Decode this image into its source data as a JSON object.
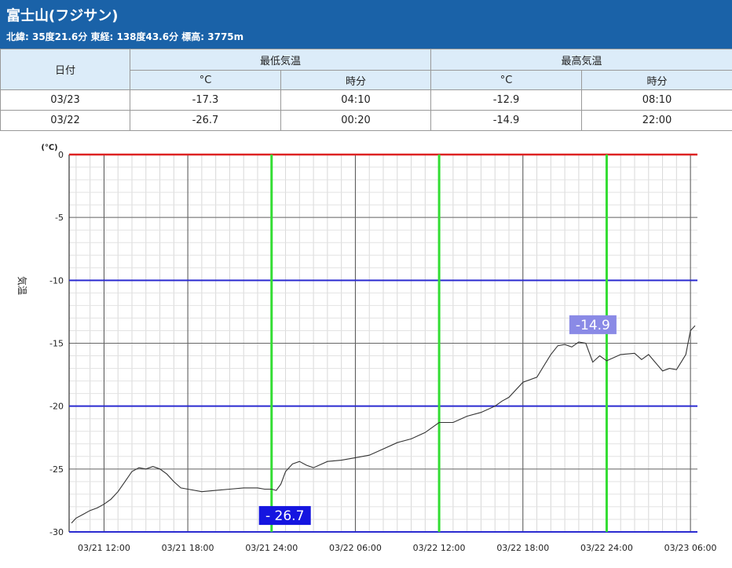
{
  "header": {
    "title": "富士山(フジサン)",
    "subtitle": "北緯: 35度21.6分 東経: 138度43.6分 標高: 3775m"
  },
  "table": {
    "date_header": "日付",
    "min_header": "最低気温",
    "max_header": "最高気温",
    "unit_header": "°C",
    "time_header": "時分",
    "rows": [
      {
        "date": "03/23",
        "min_c": "-17.3",
        "min_time": "04:10",
        "max_c": "-12.9",
        "max_time": "08:10"
      },
      {
        "date": "03/22",
        "min_c": "-26.7",
        "min_time": "00:20",
        "max_c": "-14.9",
        "max_time": "22:00"
      }
    ]
  },
  "chart_data": {
    "type": "line",
    "ylabel": "気温",
    "yunit": "(℃)",
    "ylim": [
      -30,
      0
    ],
    "yticks": [
      "0",
      "-5",
      "-10",
      "-15",
      "-20",
      "-25",
      "-30"
    ],
    "xlim": [
      "03/21 09:30",
      "03/23 06:30"
    ],
    "xticks": [
      "03/21 12:00",
      "03/21 18:00",
      "03/21 24:00",
      "03/22 06:00",
      "03/22 12:00",
      "03/22 18:00",
      "03/22 24:00",
      "03/23 06:00"
    ],
    "grid": true,
    "colors": {
      "line": "#333333",
      "zero_line": "#dd2222",
      "blue_lines": "#2b2bd0",
      "day_marker": "#33dd33",
      "min_label_bg": "#1515e0",
      "max_label_bg": "#8a8ae6"
    },
    "annotations": [
      {
        "text": "- 26.7",
        "x": "03/22 00:20",
        "y": -26.7
      },
      {
        "text": "-14.9",
        "x": "03/22 22:00",
        "y": -14.9
      }
    ],
    "series": [
      {
        "x": [
          "03/21 09:40",
          "03/21 10:00",
          "03/21 10:30",
          "03/21 11:00",
          "03/21 11:30",
          "03/21 12:00",
          "03/21 12:30",
          "03/21 13:00",
          "03/21 13:30",
          "03/21 14:00",
          "03/21 14:30",
          "03/21 15:00",
          "03/21 15:30",
          "03/21 16:00",
          "03/21 16:30",
          "03/21 17:00",
          "03/21 17:30",
          "03/21 18:00",
          "03/21 19:00",
          "03/21 20:00",
          "03/21 21:00",
          "03/21 22:00",
          "03/21 23:00",
          "03/21 23:30",
          "03/22 00:00",
          "03/22 00:20",
          "03/22 00:40",
          "03/22 01:00",
          "03/22 01:30",
          "03/22 02:00",
          "03/22 02:30",
          "03/22 03:00",
          "03/22 04:00",
          "03/22 05:00",
          "03/22 06:00",
          "03/22 07:00",
          "03/22 08:00",
          "03/22 09:00",
          "03/22 10:00",
          "03/22 11:00",
          "03/22 12:00",
          "03/22 13:00",
          "03/22 14:00",
          "03/22 15:00",
          "03/22 16:00",
          "03/22 16:30",
          "03/22 17:00",
          "03/22 18:00",
          "03/22 19:00",
          "03/22 19:30",
          "03/22 20:00",
          "03/22 20:30",
          "03/22 21:00",
          "03/22 21:30",
          "03/22 22:00",
          "03/22 22:30",
          "03/22 23:00",
          "03/22 23:30",
          "03/23 00:00",
          "03/23 01:00",
          "03/23 02:00",
          "03/23 02:30",
          "03/23 03:00",
          "03/23 04:00",
          "03/23 04:30",
          "03/23 05:00",
          "03/23 05:20",
          "03/23 05:40",
          "03/23 06:00",
          "03/23 06:20"
        ],
        "values": [
          -29.3,
          -28.9,
          -28.6,
          -28.3,
          -28.1,
          -27.8,
          -27.4,
          -26.8,
          -26.0,
          -25.2,
          -24.9,
          -25.0,
          -24.8,
          -25.0,
          -25.4,
          -26.0,
          -26.5,
          -26.6,
          -26.8,
          -26.7,
          -26.6,
          -26.5,
          -26.5,
          -26.6,
          -26.6,
          -26.7,
          -26.2,
          -25.2,
          -24.6,
          -24.4,
          -24.7,
          -24.9,
          -24.4,
          -24.3,
          -24.1,
          -23.9,
          -23.4,
          -22.9,
          -22.6,
          -22.1,
          -21.3,
          -21.3,
          -20.8,
          -20.5,
          -20.0,
          -19.6,
          -19.3,
          -18.1,
          -17.7,
          -16.8,
          -15.9,
          -15.2,
          -15.1,
          -15.3,
          -14.9,
          -15.0,
          -16.5,
          -16.0,
          -16.4,
          -15.9,
          -15.8,
          -16.3,
          -15.9,
          -17.2,
          -17.0,
          -17.1,
          -16.5,
          -15.9,
          -14.0,
          -13.6
        ]
      }
    ]
  }
}
